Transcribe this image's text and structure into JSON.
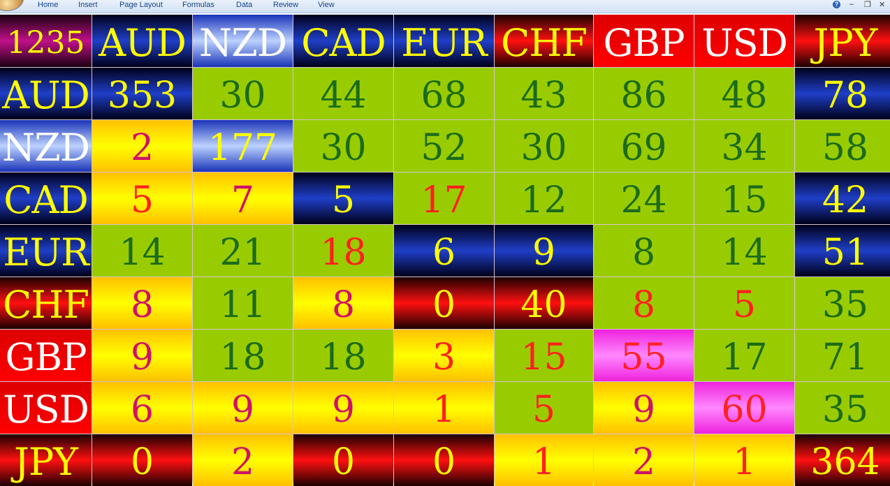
{
  "ribbon": {
    "tabs": [
      "Home",
      "Insert",
      "Page Layout",
      "Formulas",
      "Data",
      "Review",
      "View"
    ],
    "help_icon_glyph": "?",
    "minimize_glyph": "–",
    "restore_glyph": "❐",
    "close_glyph": "✕"
  },
  "table": {
    "corner": "1235",
    "columns": [
      "AUD",
      "NZD",
      "CAD",
      "EUR",
      "CHF",
      "GBP",
      "USD",
      "JPY"
    ],
    "rows": [
      {
        "label": "AUD",
        "values": [
          "353",
          "30",
          "44",
          "68",
          "43",
          "86",
          "48",
          "78"
        ]
      },
      {
        "label": "NZD",
        "values": [
          "2",
          "177",
          "30",
          "52",
          "30",
          "69",
          "34",
          "58"
        ]
      },
      {
        "label": "CAD",
        "values": [
          "5",
          "7",
          "5",
          "17",
          "12",
          "24",
          "15",
          "42"
        ]
      },
      {
        "label": "EUR",
        "values": [
          "14",
          "21",
          "18",
          "6",
          "9",
          "8",
          "14",
          "51"
        ]
      },
      {
        "label": "CHF",
        "values": [
          "8",
          "11",
          "8",
          "0",
          "40",
          "8",
          "5",
          "35"
        ]
      },
      {
        "label": "GBP",
        "values": [
          "9",
          "18",
          "18",
          "3",
          "15",
          "55",
          "17",
          "71"
        ]
      },
      {
        "label": "USD",
        "values": [
          "6",
          "9",
          "9",
          "1",
          "5",
          "9",
          "60",
          "35"
        ]
      },
      {
        "label": "JPY",
        "values": [
          "0",
          "2",
          "0",
          "0",
          "1",
          "2",
          "1",
          "364"
        ]
      }
    ]
  },
  "colors": {
    "green_fill": "#99cc00",
    "gold_fill": "#ffff00",
    "yellow_text": "#ffff00",
    "white_text": "#ffffff",
    "dark_green_text": "#1b6b1b",
    "red_text": "#ff2020",
    "magenta_text": "#d0106a"
  }
}
